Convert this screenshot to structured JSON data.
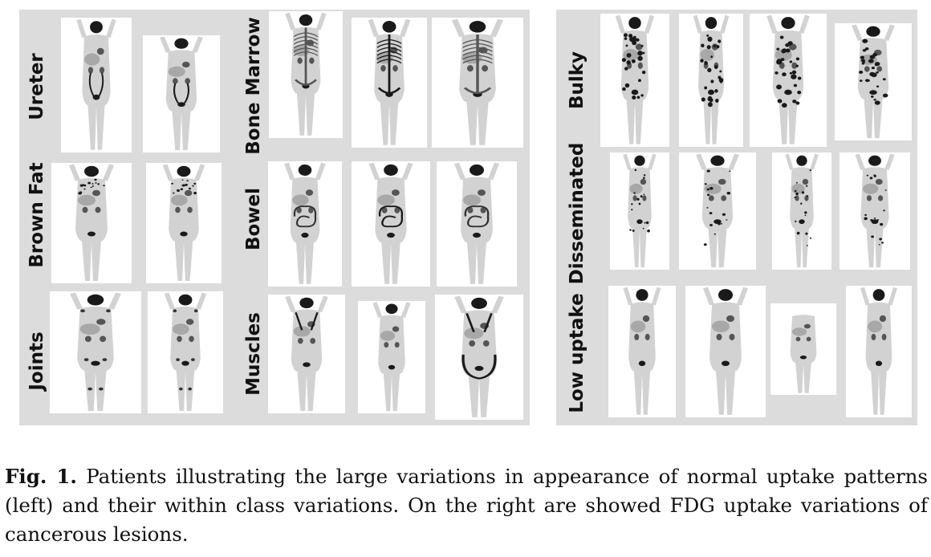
{
  "labels": {
    "ureter": "Ureter",
    "brown_fat": "Brown Fat",
    "joints": "Joints",
    "bone_marrow": "Bone Marrow",
    "bowel": "Bowel",
    "muscles": "Muscles",
    "bulky": "Bulky",
    "disseminated": "Disseminated",
    "low_uptake": "Low uptake"
  },
  "caption": {
    "label": "Fig. 1.",
    "text": "Patients illustrating the large variations in appearance of normal uptake patterns (left) and their within class variations. On the right are showed FDG uptake variations of cancerous lesions."
  },
  "colors": {
    "panel": "#dcdcdc",
    "uptake": "#111111",
    "body": "#cfcfcf"
  }
}
